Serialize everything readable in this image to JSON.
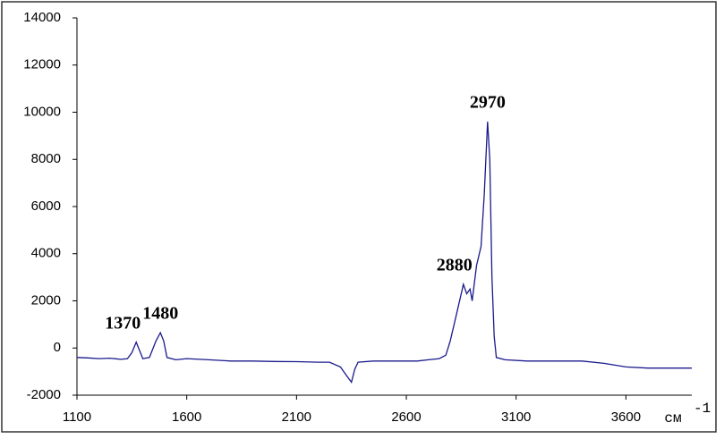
{
  "chart_data": {
    "type": "line",
    "x": [
      1100,
      1150,
      1200,
      1250,
      1300,
      1330,
      1350,
      1370,
      1385,
      1400,
      1430,
      1460,
      1480,
      1495,
      1510,
      1550,
      1600,
      1700,
      1800,
      1900,
      2000,
      2100,
      2200,
      2250,
      2300,
      2330,
      2350,
      2365,
      2380,
      2450,
      2550,
      2650,
      2700,
      2750,
      2780,
      2800,
      2830,
      2860,
      2875,
      2890,
      2900,
      2920,
      2940,
      2955,
      2970,
      2980,
      2990,
      3000,
      3010,
      3050,
      3150,
      3300,
      3400,
      3500,
      3600,
      3700,
      3800,
      3900
    ],
    "values": [
      -400,
      -420,
      -450,
      -430,
      -480,
      -450,
      -200,
      250,
      -100,
      -450,
      -400,
      300,
      650,
      300,
      -400,
      -500,
      -450,
      -500,
      -550,
      -550,
      -570,
      -580,
      -600,
      -600,
      -800,
      -1200,
      -1450,
      -900,
      -600,
      -550,
      -550,
      -550,
      -500,
      -450,
      -300,
      300,
      1500,
      2700,
      2300,
      2500,
      2000,
      3500,
      4300,
      6500,
      9600,
      8000,
      3000,
      500,
      -400,
      -500,
      -550,
      -550,
      -550,
      -650,
      -800,
      -850,
      -850,
      -850
    ],
    "color": "#1a1a8c",
    "xlim": [
      1100,
      3900
    ],
    "xticks": [
      1100,
      1600,
      2100,
      2600,
      3100,
      3600
    ],
    "ylim": [
      -2000,
      14000
    ],
    "yticks": [
      -2000,
      0,
      2000,
      4000,
      6000,
      8000,
      10000,
      12000,
      14000
    ],
    "annotations": [
      1370,
      1480,
      2880,
      2970
    ],
    "xlabel": "см",
    "xlabel_sup": "-1"
  }
}
